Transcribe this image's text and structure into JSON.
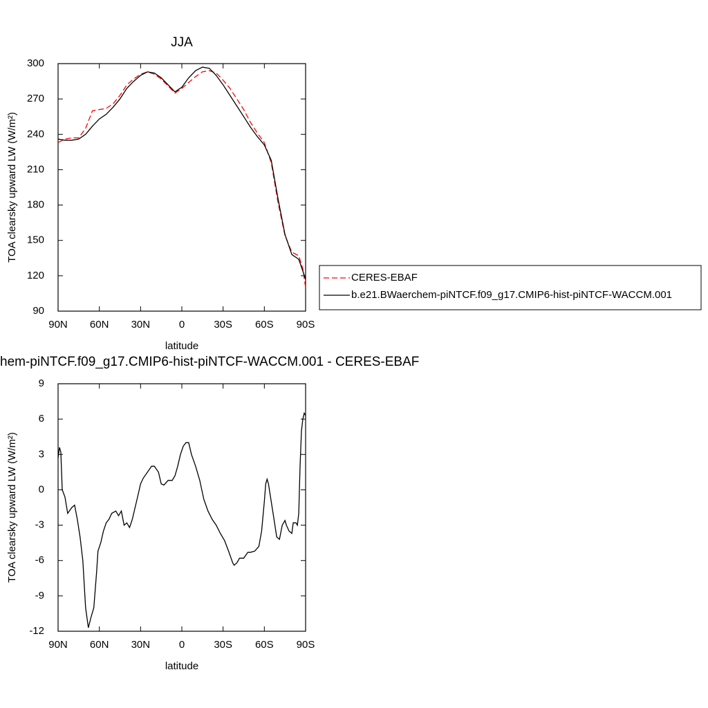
{
  "chart_data": [
    {
      "type": "line",
      "title": "JJA",
      "xlabel": "latitude",
      "ylabel": "TOA clearsky upward LW (W/m²)",
      "xlim": [
        90,
        -90
      ],
      "ylim": [
        90,
        300
      ],
      "xticks": [
        {
          "value": 90,
          "label": "90N"
        },
        {
          "value": 60,
          "label": "60N"
        },
        {
          "value": 30,
          "label": "30N"
        },
        0,
        {
          "value": -30,
          "label": "30S"
        },
        {
          "value": -60,
          "label": "60S"
        },
        {
          "value": -90,
          "label": "90S"
        }
      ],
      "yticks": [
        90,
        120,
        150,
        180,
        210,
        240,
        270,
        300
      ],
      "legend": "right",
      "x": [
        90,
        85,
        80,
        75,
        70,
        65,
        60,
        55,
        50,
        45,
        40,
        35,
        30,
        25,
        20,
        15,
        10,
        5,
        0,
        -5,
        -10,
        -15,
        -20,
        -25,
        -30,
        -35,
        -40,
        -45,
        -50,
        -55,
        -60,
        -65,
        -70,
        -75,
        -80,
        -85,
        -88,
        -90
      ],
      "series": [
        {
          "name": "CERES-EBAF",
          "color": "#ff0000",
          "dashed": true,
          "values": [
            233,
            236,
            237,
            237,
            245,
            260,
            261,
            262,
            266,
            273,
            282,
            287,
            291,
            293,
            291,
            287,
            281,
            275,
            279,
            284,
            289,
            293,
            294,
            292,
            286,
            279,
            270,
            261,
            250,
            241,
            233,
            216,
            182,
            154,
            140,
            137,
            126,
            110
          ]
        },
        {
          "name": "b.e21.BWaerchem-piNTCF.f09_g17.CMIP6-hist-piNTCF-WACCM.001",
          "color": "#000000",
          "dashed": false,
          "values": [
            236,
            235,
            235,
            236,
            240,
            247,
            253,
            257,
            263,
            270,
            279,
            285,
            290,
            293,
            292,
            288,
            282,
            276,
            280,
            288,
            294,
            297,
            296,
            290,
            282,
            273,
            264,
            255,
            246,
            238,
            231,
            218,
            185,
            155,
            138,
            134,
            124,
            117
          ]
        }
      ]
    },
    {
      "type": "line",
      "title": "hem-piNTCF.f09_g17.CMIP6-hist-piNTCF-WACCM.001 - CERES-EBAF",
      "xlabel": "latitude",
      "ylabel": "TOA clearsky upward LW (W/m²)",
      "xlim": [
        90,
        -90
      ],
      "ylim": [
        -12,
        9
      ],
      "xticks": [
        {
          "value": 90,
          "label": "90N"
        },
        {
          "value": 60,
          "label": "60N"
        },
        {
          "value": 30,
          "label": "30N"
        },
        0,
        {
          "value": -30,
          "label": "30S"
        },
        {
          "value": -60,
          "label": "60S"
        },
        {
          "value": -90,
          "label": "90S"
        }
      ],
      "yticks": [
        -12,
        -9,
        -6,
        -3,
        0,
        3,
        6,
        9
      ],
      "color": "#000000",
      "x": [
        90,
        89,
        88,
        87,
        85,
        83,
        80,
        78,
        76,
        74,
        72,
        70,
        68,
        66,
        64,
        62,
        61,
        59,
        57,
        55,
        53,
        51,
        48,
        46,
        44,
        42,
        40,
        38,
        36,
        34,
        32,
        30,
        28,
        25,
        22,
        20,
        17,
        15,
        13,
        10,
        7,
        5,
        3,
        1,
        -1,
        -3,
        -5,
        -7,
        -10,
        -13,
        -16,
        -19,
        -22,
        -25,
        -28,
        -31,
        -34,
        -37,
        -38,
        -40,
        -42,
        -45,
        -48,
        -50,
        -53,
        -56,
        -58,
        -60,
        -61,
        -62,
        -63,
        -65,
        -67,
        -69,
        -71,
        -73,
        -75,
        -76,
        -78,
        -80,
        -81,
        -83,
        -84,
        -85,
        -86,
        -87,
        -88,
        -89,
        -90
      ],
      "values": [
        2.7,
        3.6,
        3.2,
        0,
        -0.6,
        -2,
        -1.5,
        -1.3,
        -2.5,
        -4,
        -6,
        -10,
        -11.7,
        -10.8,
        -10,
        -7,
        -5.2,
        -4.5,
        -3.5,
        -2.8,
        -2.5,
        -2,
        -1.8,
        -2.2,
        -1.8,
        -3,
        -2.8,
        -3.2,
        -2.5,
        -1.5,
        -0.5,
        0.5,
        1,
        1.5,
        2,
        2,
        1.5,
        0.5,
        0.4,
        0.8,
        0.8,
        1.2,
        2,
        3,
        3.7,
        4,
        4,
        3,
        2,
        0.8,
        -0.8,
        -1.8,
        -2.5,
        -3,
        -3.7,
        -4.3,
        -5.2,
        -6.2,
        -6.4,
        -6.2,
        -5.8,
        -5.8,
        -5.3,
        -5.3,
        -5.2,
        -4.8,
        -3.5,
        -1,
        0.5,
        0.9,
        0.5,
        -1,
        -2.5,
        -4,
        -4.2,
        -3,
        -2.6,
        -3,
        -3.5,
        -3.7,
        -2.8,
        -2.8,
        -3,
        -2,
        2,
        5,
        6,
        6.5,
        6.3
      ]
    }
  ]
}
